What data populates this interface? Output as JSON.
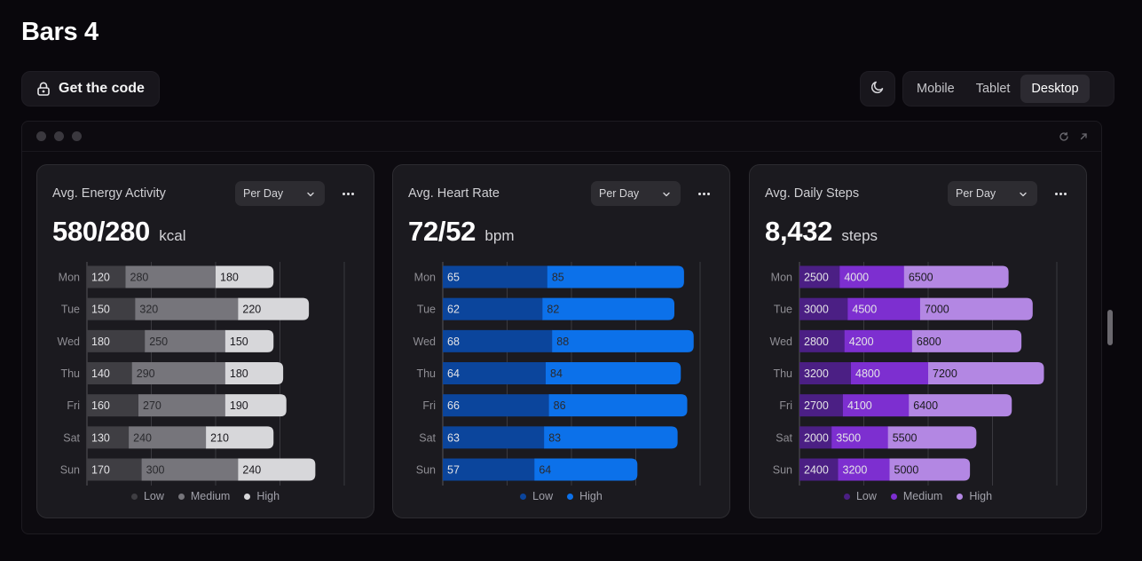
{
  "page": {
    "title": "Bars 4"
  },
  "toolbar": {
    "code_label": "Get the code",
    "viewports": [
      "Mobile",
      "Tablet",
      "Desktop"
    ],
    "active_viewport": "Desktop"
  },
  "icons": {
    "lock": "lock-icon",
    "moon": "moon-icon",
    "refresh": "refresh-icon",
    "external": "external-link-icon",
    "chevron": "chevron-down-icon",
    "more": "more-horizontal-icon"
  },
  "cards": [
    {
      "title": "Avg. Energy Activity",
      "period": "Per Day",
      "value": "580/280",
      "unit": "kcal",
      "chart_data": {
        "type": "bar",
        "orientation": "horizontal",
        "stacked": true,
        "categories": [
          "Mon",
          "Tue",
          "Wed",
          "Thu",
          "Fri",
          "Sat",
          "Sun"
        ],
        "series": [
          {
            "name": "Low",
            "color": "#3f3e43",
            "values": [
              120,
              150,
              180,
              140,
              160,
              130,
              170
            ]
          },
          {
            "name": "Medium",
            "color": "#76757b",
            "values": [
              280,
              320,
              250,
              290,
              270,
              240,
              300
            ]
          },
          {
            "name": "High",
            "color": "#d7d7da",
            "values": [
              180,
              220,
              150,
              180,
              190,
              210,
              240
            ]
          }
        ],
        "xlim": [
          0,
          800
        ],
        "gridlines": [
          0,
          200,
          400,
          600,
          800
        ],
        "legend": "bottom"
      }
    },
    {
      "title": "Avg. Heart Rate",
      "period": "Per Day",
      "value": "72/52",
      "unit": "bpm",
      "chart_data": {
        "type": "bar",
        "orientation": "horizontal",
        "stacked": true,
        "categories": [
          "Mon",
          "Tue",
          "Wed",
          "Thu",
          "Fri",
          "Sat",
          "Sun"
        ],
        "series": [
          {
            "name": "Low",
            "color": "#0b459c",
            "values": [
              65,
              62,
              68,
              64,
              66,
              63,
              57
            ]
          },
          {
            "name": "High",
            "color": "#0c71ea",
            "values": [
              85,
              82,
              88,
              84,
              86,
              83,
              64
            ]
          }
        ],
        "xlim": [
          0,
          160
        ],
        "gridlines": [
          0,
          40,
          80,
          120,
          160
        ],
        "legend": "bottom"
      }
    },
    {
      "title": "Avg. Daily Steps",
      "period": "Per Day",
      "value": "8,432",
      "unit": "steps",
      "chart_data": {
        "type": "bar",
        "orientation": "horizontal",
        "stacked": true,
        "categories": [
          "Mon",
          "Tue",
          "Wed",
          "Thu",
          "Fri",
          "Sat",
          "Sun"
        ],
        "series": [
          {
            "name": "Low",
            "color": "#4b1f84",
            "values": [
              2500,
              3000,
              2800,
              3200,
              2700,
              2000,
              2400
            ]
          },
          {
            "name": "Medium",
            "color": "#7d2fd0",
            "values": [
              4000,
              4500,
              4200,
              4800,
              4100,
              3500,
              3200
            ]
          },
          {
            "name": "High",
            "color": "#b387e3",
            "values": [
              6500,
              7000,
              6800,
              7200,
              6400,
              5500,
              5000
            ]
          }
        ],
        "xlim": [
          0,
          16000
        ],
        "gridlines": [
          0,
          4000,
          8000,
          12000,
          16000
        ],
        "legend": "bottom"
      }
    }
  ]
}
